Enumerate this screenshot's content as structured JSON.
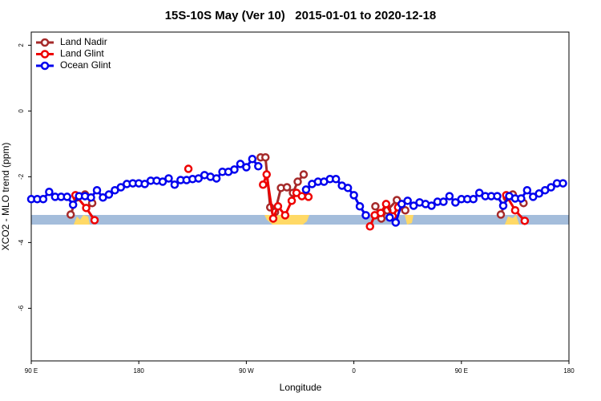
{
  "chart_data": {
    "type": "line",
    "title": "15S-10S May (Ver 10)   2015-01-01 to 2020-12-18",
    "xlabel": "Longitude",
    "ylabel": "XCO2 - MLO trend (ppm)",
    "xlim": [
      90,
      540
    ],
    "ylim": [
      -7.6,
      2.4
    ],
    "xticks": [
      {
        "value": 90,
        "label": "90 E"
      },
      180,
      {
        "value": 270,
        "label": "90 W"
      },
      {
        "value": 360,
        "label": "0"
      },
      {
        "value": 450,
        "label": "90 E"
      },
      {
        "value": 540,
        "label": "180"
      }
    ],
    "yticks": [
      2,
      0,
      -2,
      -4,
      -6
    ],
    "legend": "top-left",
    "series": [
      {
        "name": "Land Nadir",
        "color": "#a52a2a",
        "x": [
          123,
          128,
          135,
          141,
          null,
          282,
          286,
          290,
          294,
          299,
          304,
          309,
          313,
          318,
          null,
          378,
          383,
          388,
          396,
          403,
          null,
          483,
          488,
          493,
          502
        ],
        "values": [
          -3.15,
          -2.63,
          -2.54,
          -2.8,
          null,
          -1.41,
          -1.41,
          -2.93,
          -3.07,
          -2.34,
          -2.32,
          -2.49,
          -2.15,
          -1.93,
          null,
          -2.9,
          -3.27,
          -3.02,
          -2.71,
          -3.02,
          null,
          -3.15,
          -2.63,
          -2.54,
          -2.8
        ]
      },
      {
        "name": "Land Glint",
        "color": "#ee0000",
        "x": [
          127,
          136,
          143,
          null,
          221.5,
          null,
          284,
          287,
          292.5,
          296.5,
          302.5,
          308,
          312,
          316.5,
          322,
          null,
          373.5,
          377.5,
          382.5,
          387,
          392.5,
          397,
          null,
          487.5,
          495,
          503
        ],
        "values": [
          -2.56,
          -2.95,
          -3.32,
          null,
          -1.76,
          null,
          -2.24,
          -1.93,
          -3.27,
          -2.9,
          -3.17,
          -2.73,
          -2.49,
          -2.59,
          -2.61,
          null,
          -3.51,
          -3.17,
          -3.1,
          -2.83,
          -3.2,
          -2.93,
          null,
          -2.56,
          -3.02,
          -3.34
        ]
      },
      {
        "name": "Ocean Glint",
        "color": "#0000ee",
        "x": [
          90,
          95,
          100,
          105,
          110,
          115,
          120,
          125,
          130,
          135,
          140,
          145,
          150,
          155,
          160,
          165,
          170,
          175,
          180,
          185,
          190,
          195,
          200,
          205,
          210,
          215,
          220,
          225,
          230,
          235,
          240,
          245,
          250,
          255,
          260,
          265,
          270,
          275,
          280,
          null,
          320,
          325,
          330,
          335,
          340,
          345,
          350,
          355,
          360,
          365,
          370,
          null,
          390,
          395,
          400,
          405,
          410,
          415,
          420,
          425,
          430,
          435,
          440,
          445,
          450,
          455,
          460,
          465,
          470,
          475,
          480,
          485,
          490,
          495,
          500,
          505,
          510,
          515,
          520,
          525,
          530,
          535
        ],
        "values": [
          -2.68,
          -2.68,
          -2.68,
          -2.46,
          -2.61,
          -2.61,
          -2.61,
          -2.85,
          -2.59,
          -2.59,
          -2.63,
          -2.41,
          -2.63,
          -2.54,
          -2.41,
          -2.32,
          -2.22,
          -2.2,
          -2.2,
          -2.22,
          -2.12,
          -2.12,
          -2.15,
          -2.05,
          -2.24,
          -2.1,
          -2.1,
          -2.07,
          -2.05,
          -1.95,
          -2.0,
          -2.05,
          -1.85,
          -1.85,
          -1.78,
          -1.61,
          -1.71,
          -1.46,
          -1.68,
          null,
          -2.39,
          -2.22,
          -2.15,
          -2.15,
          -2.07,
          -2.07,
          -2.27,
          -2.34,
          -2.56,
          -2.9,
          -3.17,
          null,
          -3.24,
          -3.39,
          -2.83,
          -2.73,
          -2.88,
          -2.78,
          -2.83,
          -2.88,
          -2.76,
          -2.76,
          -2.59,
          -2.78,
          -2.68,
          -2.68,
          -2.68,
          -2.49,
          -2.59,
          -2.59,
          -2.59,
          -2.88,
          -2.59,
          -2.66,
          -2.66,
          -2.41,
          -2.61,
          -2.51,
          -2.41,
          -2.32,
          -2.2,
          -2.2
        ]
      }
    ]
  }
}
